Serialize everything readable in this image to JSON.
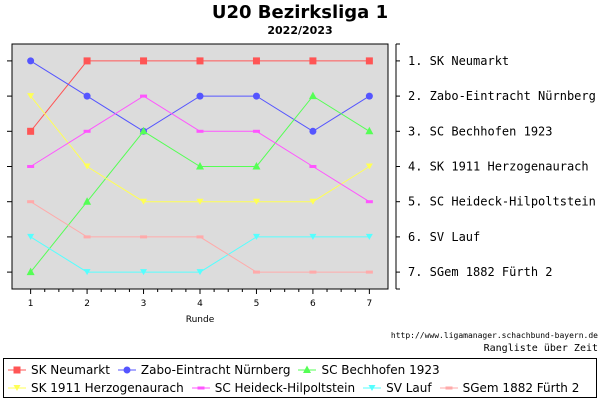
{
  "chart_data": {
    "type": "line",
    "title": "U20 Bezirksliga 1",
    "subtitle": "2022/2023",
    "xlabel": "Runde",
    "ylabel": "",
    "x": [
      1,
      2,
      3,
      4,
      5,
      6,
      7
    ],
    "ylim": [
      1,
      7
    ],
    "y_inverted": true,
    "grid": false,
    "legend_placement": "bottom",
    "rank_labels": [
      "1.  SK Neumarkt",
      "2.  Zabo-Eintracht Nürnberg",
      "3.  SC Bechhofen 1923",
      "4.  SK 1911 Herzogenaurach",
      "5.  SC Heideck-Hilpoltstein",
      "6.  SV Lauf",
      "7.  SGem 1882 Fürth 2"
    ],
    "series": [
      {
        "name": "SK Neumarkt",
        "color": "#ff5555",
        "marker": "square",
        "values": [
          3,
          1,
          1,
          1,
          1,
          1,
          1
        ]
      },
      {
        "name": "Zabo-Eintracht Nürnberg",
        "color": "#5555ff",
        "marker": "circle",
        "values": [
          1,
          2,
          3,
          2,
          2,
          3,
          2
        ]
      },
      {
        "name": "SC Bechhofen 1923",
        "color": "#55ff55",
        "marker": "triangle-up",
        "values": [
          7,
          5,
          3,
          4,
          4,
          2,
          3
        ]
      },
      {
        "name": "SK 1911 Herzogenaurach",
        "color": "#ffff55",
        "marker": "triangle-down",
        "values": [
          2,
          4,
          5,
          5,
          5,
          5,
          4
        ]
      },
      {
        "name": "SC Heideck-Hilpoltstein",
        "color": "#ff55ff",
        "marker": "line",
        "values": [
          4,
          3,
          2,
          3,
          3,
          4,
          5
        ]
      },
      {
        "name": "SV Lauf",
        "color": "#55ffff",
        "marker": "triangle-down",
        "values": [
          6,
          7,
          7,
          7,
          6,
          6,
          6
        ]
      },
      {
        "name": "SGem 1882 Fürth 2",
        "color": "#ffaaaa",
        "marker": "line",
        "values": [
          5,
          6,
          6,
          6,
          7,
          7,
          7
        ]
      }
    ]
  },
  "credits": {
    "url": "http://www.ligamanager.schachbund-bayern.de",
    "subtitle": "Rangliste über Zeit"
  }
}
